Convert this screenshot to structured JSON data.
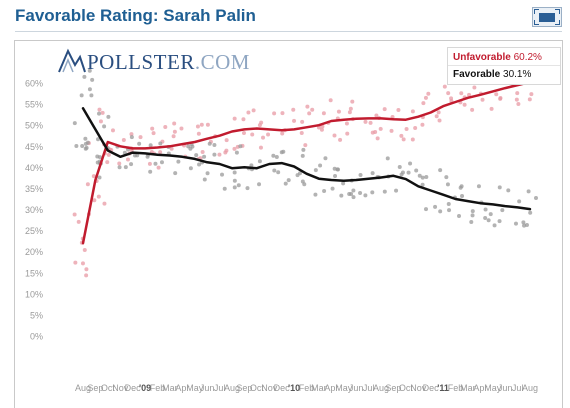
{
  "page": {
    "title": "Favorable Rating: Sarah Palin"
  },
  "logo": {
    "text_main": "POLLSTER",
    "text_suffix": ".COM"
  },
  "legend": {
    "unfavorable_name": "Unfavorable",
    "unfavorable_value": "60.2%",
    "favorable_name": "Favorable",
    "favorable_value": "30.1%"
  },
  "colors": {
    "title": "#1f5f93",
    "unfavorable": "#c11b2e",
    "favorable": "#111111",
    "unfavorable_dot": "#e89aa4",
    "favorable_dot": "#9a9a9a"
  },
  "chart_data": {
    "type": "line",
    "ylim": [
      0,
      60
    ],
    "y_ticks": [
      0,
      5,
      10,
      15,
      20,
      25,
      30,
      35,
      40,
      45,
      50,
      55,
      60
    ],
    "y_tick_labels": [
      "0%",
      "5%",
      "10%",
      "15%",
      "20%",
      "25%",
      "30%",
      "35%",
      "40%",
      "45%",
      "50%",
      "55%",
      "60%"
    ],
    "x_tick_labels": [
      "Aug",
      "Sep",
      "Oct",
      "Nov",
      "Dec",
      "'09",
      "Feb",
      "Mar",
      "Apr",
      "May",
      "Jun",
      "Jul",
      "Aug",
      "Sep",
      "Oct",
      "Nov",
      "Dec",
      "'10",
      "Feb",
      "Mar",
      "Apr",
      "May",
      "Jun",
      "Jul",
      "Aug",
      "Sep",
      "Oct",
      "Nov",
      "Dec",
      "'11",
      "Feb",
      "Mar",
      "Apr",
      "May",
      "Jun",
      "Jul",
      "Aug"
    ],
    "grid": false,
    "legend_position": "top-right",
    "series": [
      {
        "name": "Unfavorable",
        "color": "#c11b2e",
        "x": [
          "Aug 2008",
          "Sep 2008",
          "Oct 2008",
          "Nov 2008",
          "Dec 2008",
          "Jan 2009",
          "Feb 2009",
          "Mar 2009",
          "Apr 2009",
          "May 2009",
          "Jun 2009",
          "Jul 2009",
          "Aug 2009",
          "Sep 2009",
          "Oct 2009",
          "Nov 2009",
          "Dec 2009",
          "Jan 2010",
          "Feb 2010",
          "Mar 2010",
          "Apr 2010",
          "May 2010",
          "Jun 2010",
          "Jul 2010",
          "Aug 2010",
          "Sep 2010",
          "Oct 2010",
          "Nov 2010",
          "Dec 2010",
          "Jan 2011",
          "Feb 2011",
          "Mar 2011",
          "Apr 2011",
          "May 2011",
          "Jun 2011",
          "Jul 2011",
          "Aug 2011"
        ],
        "values": [
          22,
          37,
          46,
          45,
          44.5,
          44.5,
          44.7,
          45,
          45.5,
          46,
          46.8,
          47.5,
          48.5,
          49,
          49.2,
          49,
          48.8,
          49,
          49.5,
          50,
          51,
          51.3,
          51.5,
          51.6,
          51.6,
          51.4,
          51.3,
          52,
          53,
          54.5,
          55.5,
          56.5,
          57.2,
          58,
          58.8,
          59.5,
          60.2
        ]
      },
      {
        "name": "Favorable",
        "color": "#111111",
        "x": [
          "Aug 2008",
          "Sep 2008",
          "Oct 2008",
          "Nov 2008",
          "Dec 2008",
          "Jan 2009",
          "Feb 2009",
          "Mar 2009",
          "Apr 2009",
          "May 2009",
          "Jun 2009",
          "Jul 2009",
          "Aug 2009",
          "Sep 2009",
          "Oct 2009",
          "Nov 2009",
          "Dec 2009",
          "Jan 2010",
          "Feb 2010",
          "Mar 2010",
          "Apr 2010",
          "May 2010",
          "Jun 2010",
          "Jul 2010",
          "Aug 2010",
          "Sep 2010",
          "Oct 2010",
          "Nov 2010",
          "Dec 2010",
          "Jan 2011",
          "Feb 2011",
          "Mar 2011",
          "Apr 2011",
          "May 2011",
          "Jun 2011",
          "Jul 2011",
          "Aug 2011"
        ],
        "values": [
          54,
          49,
          44,
          42.5,
          43.5,
          43.3,
          43,
          42.8,
          42.5,
          42,
          41.2,
          40.8,
          39.8,
          40,
          39.8,
          40.8,
          41,
          40.2,
          38.5,
          37.3,
          37,
          36.8,
          37,
          37.3,
          37.6,
          38,
          37.2,
          35.5,
          34.5,
          33.5,
          32.5,
          32,
          31.5,
          31.2,
          30.8,
          30.5,
          30.1
        ]
      }
    ]
  }
}
